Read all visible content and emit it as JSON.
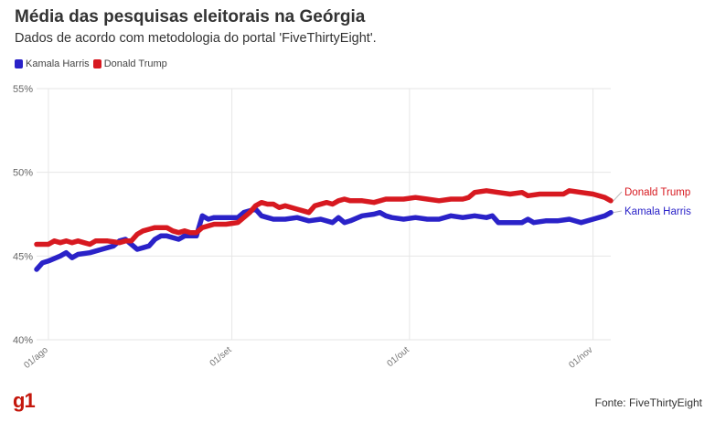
{
  "title": "Média das pesquisas eleitorais na Geórgia",
  "subtitle": "Dados de acordo com metodologia do portal 'FiveThirtyEight'.",
  "source": "Fonte: FiveThirtyEight",
  "logo": "g1",
  "legend": [
    {
      "label": "Kamala Harris",
      "color": "#2a22c8"
    },
    {
      "label": "Donald Trump",
      "color": "#d71920"
    }
  ],
  "chart_data": {
    "type": "line",
    "y_ticks": [
      "40%",
      "45%",
      "50%",
      "55%"
    ],
    "y_tick_values": [
      40,
      45,
      50,
      55
    ],
    "ylim": [
      40,
      55
    ],
    "x_ticks": [
      "01/ago",
      "01/set",
      "01/out",
      "01/nov"
    ],
    "x_tick_days": [
      0,
      31,
      61,
      92
    ],
    "xlim_days": [
      -2,
      95
    ],
    "grid": true,
    "series": [
      {
        "name": "Kamala Harris",
        "color": "#2a22c8",
        "end_label": "Kamala Harris",
        "points": [
          [
            -2,
            44.2
          ],
          [
            -1,
            44.6
          ],
          [
            0,
            44.7
          ],
          [
            2,
            45.0
          ],
          [
            3,
            45.2
          ],
          [
            4,
            44.9
          ],
          [
            5,
            45.1
          ],
          [
            7,
            45.2
          ],
          [
            9,
            45.4
          ],
          [
            11,
            45.6
          ],
          [
            12,
            45.9
          ],
          [
            13,
            46.0
          ],
          [
            15,
            45.4
          ],
          [
            16,
            45.5
          ],
          [
            17,
            45.6
          ],
          [
            18,
            46.0
          ],
          [
            19,
            46.2
          ],
          [
            20,
            46.2
          ],
          [
            22,
            46.0
          ],
          [
            23,
            46.2
          ],
          [
            25,
            46.2
          ],
          [
            26,
            47.4
          ],
          [
            27,
            47.2
          ],
          [
            28,
            47.3
          ],
          [
            29,
            47.3
          ],
          [
            30,
            47.3
          ],
          [
            32,
            47.3
          ],
          [
            33,
            47.6
          ],
          [
            34,
            47.7
          ],
          [
            35,
            47.8
          ],
          [
            36,
            47.4
          ],
          [
            37,
            47.3
          ],
          [
            38,
            47.2
          ],
          [
            40,
            47.2
          ],
          [
            42,
            47.3
          ],
          [
            44,
            47.1
          ],
          [
            46,
            47.2
          ],
          [
            48,
            47.0
          ],
          [
            49,
            47.3
          ],
          [
            50,
            47.0
          ],
          [
            51,
            47.1
          ],
          [
            53,
            47.4
          ],
          [
            55,
            47.5
          ],
          [
            56,
            47.6
          ],
          [
            57,
            47.4
          ],
          [
            58,
            47.3
          ],
          [
            60,
            47.2
          ],
          [
            62,
            47.3
          ],
          [
            64,
            47.2
          ],
          [
            66,
            47.2
          ],
          [
            68,
            47.4
          ],
          [
            70,
            47.3
          ],
          [
            72,
            47.4
          ],
          [
            74,
            47.3
          ],
          [
            75,
            47.4
          ],
          [
            76,
            47.0
          ],
          [
            78,
            47.0
          ],
          [
            80,
            47.0
          ],
          [
            81,
            47.2
          ],
          [
            82,
            47.0
          ],
          [
            84,
            47.1
          ],
          [
            86,
            47.1
          ],
          [
            88,
            47.2
          ],
          [
            90,
            47.0
          ],
          [
            92,
            47.2
          ],
          [
            94,
            47.4
          ],
          [
            95,
            47.6
          ]
        ]
      },
      {
        "name": "Donald Trump",
        "color": "#d71920",
        "end_label": "Donald Trump",
        "points": [
          [
            -2,
            45.7
          ],
          [
            0,
            45.7
          ],
          [
            1,
            45.9
          ],
          [
            2,
            45.8
          ],
          [
            3,
            45.9
          ],
          [
            4,
            45.8
          ],
          [
            5,
            45.9
          ],
          [
            6,
            45.8
          ],
          [
            7,
            45.7
          ],
          [
            8,
            45.9
          ],
          [
            10,
            45.9
          ],
          [
            12,
            45.8
          ],
          [
            13,
            45.9
          ],
          [
            14,
            45.9
          ],
          [
            15,
            46.3
          ],
          [
            16,
            46.5
          ],
          [
            17,
            46.6
          ],
          [
            18,
            46.7
          ],
          [
            20,
            46.7
          ],
          [
            21,
            46.5
          ],
          [
            22,
            46.4
          ],
          [
            23,
            46.5
          ],
          [
            24,
            46.4
          ],
          [
            25,
            46.4
          ],
          [
            26,
            46.7
          ],
          [
            28,
            46.9
          ],
          [
            30,
            46.9
          ],
          [
            32,
            47.0
          ],
          [
            33,
            47.3
          ],
          [
            34,
            47.6
          ],
          [
            35,
            48.0
          ],
          [
            36,
            48.2
          ],
          [
            37,
            48.1
          ],
          [
            38,
            48.1
          ],
          [
            39,
            47.9
          ],
          [
            40,
            48.0
          ],
          [
            42,
            47.8
          ],
          [
            43,
            47.7
          ],
          [
            44,
            47.6
          ],
          [
            45,
            48.0
          ],
          [
            47,
            48.2
          ],
          [
            48,
            48.1
          ],
          [
            49,
            48.3
          ],
          [
            50,
            48.4
          ],
          [
            51,
            48.3
          ],
          [
            53,
            48.3
          ],
          [
            55,
            48.2
          ],
          [
            57,
            48.4
          ],
          [
            60,
            48.4
          ],
          [
            62,
            48.5
          ],
          [
            64,
            48.4
          ],
          [
            66,
            48.3
          ],
          [
            68,
            48.4
          ],
          [
            70,
            48.4
          ],
          [
            71,
            48.5
          ],
          [
            72,
            48.8
          ],
          [
            74,
            48.9
          ],
          [
            76,
            48.8
          ],
          [
            78,
            48.7
          ],
          [
            80,
            48.8
          ],
          [
            81,
            48.6
          ],
          [
            83,
            48.7
          ],
          [
            85,
            48.7
          ],
          [
            87,
            48.7
          ],
          [
            88,
            48.9
          ],
          [
            90,
            48.8
          ],
          [
            92,
            48.7
          ],
          [
            94,
            48.5
          ],
          [
            95,
            48.3
          ]
        ]
      }
    ]
  }
}
